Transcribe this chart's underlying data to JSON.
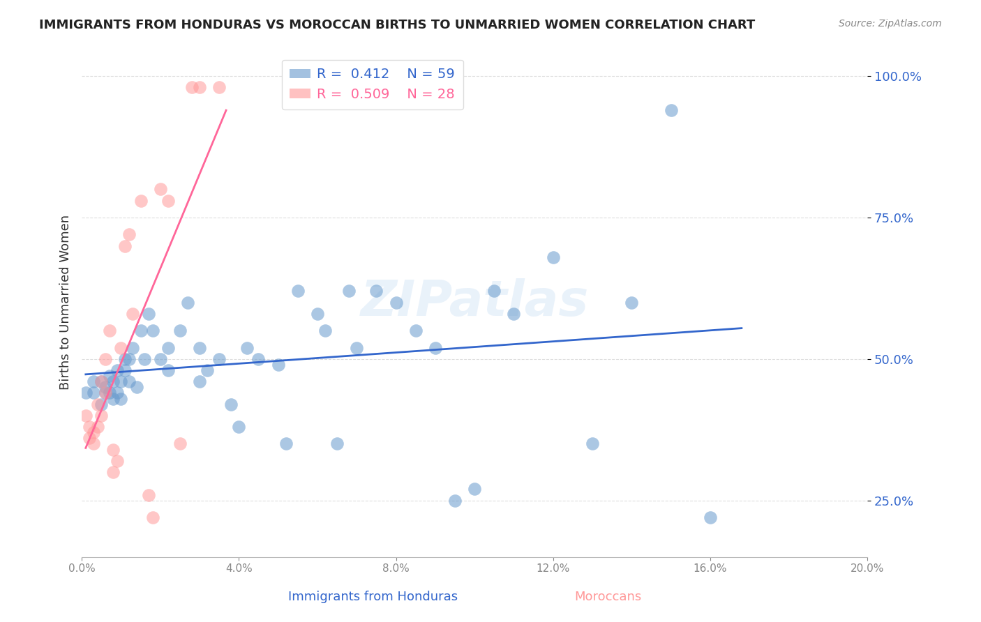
{
  "title": "IMMIGRANTS FROM HONDURAS VS MOROCCAN BIRTHS TO UNMARRIED WOMEN CORRELATION CHART",
  "source": "Source: ZipAtlas.com",
  "xlabel_blue": "Immigrants from Honduras",
  "xlabel_pink": "Moroccans",
  "ylabel": "Births to Unmarried Women",
  "watermark": "ZIPatlas",
  "legend_blue_r": "R =  0.412",
  "legend_blue_n": "N = 59",
  "legend_pink_r": "R =  0.509",
  "legend_pink_n": "N = 28",
  "xlim": [
    0.0,
    0.2
  ],
  "ylim": [
    0.15,
    1.05
  ],
  "yticks": [
    0.25,
    0.5,
    0.75,
    1.0
  ],
  "xticks": [
    0.0,
    0.04,
    0.08,
    0.12,
    0.16,
    0.2
  ],
  "blue_color": "#6699CC",
  "pink_color": "#FF9999",
  "blue_line_color": "#3366CC",
  "pink_line_color": "#FF6699",
  "blue_scatter_x": [
    0.001,
    0.003,
    0.003,
    0.005,
    0.005,
    0.006,
    0.006,
    0.007,
    0.007,
    0.008,
    0.008,
    0.009,
    0.009,
    0.01,
    0.01,
    0.011,
    0.011,
    0.012,
    0.012,
    0.013,
    0.014,
    0.015,
    0.016,
    0.017,
    0.018,
    0.02,
    0.022,
    0.022,
    0.025,
    0.027,
    0.03,
    0.03,
    0.032,
    0.035,
    0.038,
    0.04,
    0.042,
    0.045,
    0.05,
    0.052,
    0.055,
    0.06,
    0.062,
    0.065,
    0.068,
    0.07,
    0.075,
    0.08,
    0.085,
    0.09,
    0.095,
    0.1,
    0.105,
    0.11,
    0.12,
    0.13,
    0.14,
    0.15,
    0.16
  ],
  "blue_scatter_y": [
    0.44,
    0.44,
    0.46,
    0.42,
    0.46,
    0.44,
    0.45,
    0.44,
    0.47,
    0.43,
    0.46,
    0.44,
    0.48,
    0.43,
    0.46,
    0.48,
    0.5,
    0.46,
    0.5,
    0.52,
    0.45,
    0.55,
    0.5,
    0.58,
    0.55,
    0.5,
    0.48,
    0.52,
    0.55,
    0.6,
    0.46,
    0.52,
    0.48,
    0.5,
    0.42,
    0.38,
    0.52,
    0.5,
    0.49,
    0.35,
    0.62,
    0.58,
    0.55,
    0.35,
    0.62,
    0.52,
    0.62,
    0.6,
    0.55,
    0.52,
    0.25,
    0.27,
    0.62,
    0.58,
    0.68,
    0.35,
    0.6,
    0.94,
    0.22
  ],
  "pink_scatter_x": [
    0.001,
    0.002,
    0.002,
    0.003,
    0.003,
    0.004,
    0.004,
    0.005,
    0.005,
    0.006,
    0.006,
    0.007,
    0.008,
    0.008,
    0.009,
    0.01,
    0.011,
    0.012,
    0.013,
    0.015,
    0.017,
    0.018,
    0.02,
    0.022,
    0.025,
    0.028,
    0.03,
    0.035
  ],
  "pink_scatter_y": [
    0.4,
    0.38,
    0.36,
    0.35,
    0.37,
    0.42,
    0.38,
    0.46,
    0.4,
    0.44,
    0.5,
    0.55,
    0.3,
    0.34,
    0.32,
    0.52,
    0.7,
    0.72,
    0.58,
    0.78,
    0.26,
    0.22,
    0.8,
    0.78,
    0.35,
    0.98,
    0.98,
    0.98
  ],
  "background_color": "#FFFFFF",
  "grid_color": "#DDDDDD"
}
